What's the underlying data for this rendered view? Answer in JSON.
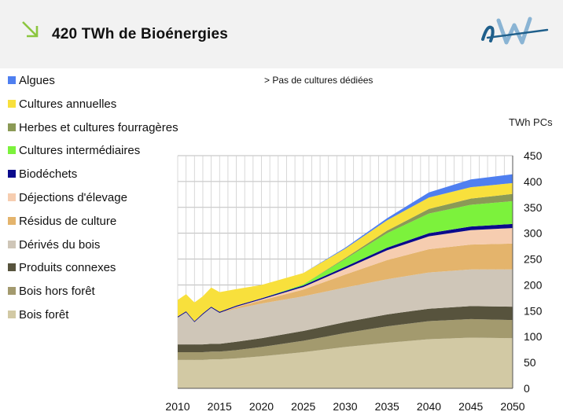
{
  "header": {
    "title": "420 TWh de Bioénergies",
    "arrow_color": "#8cc63f",
    "logo_colors": [
      "#1f5f8b",
      "#8ab4d4"
    ]
  },
  "note": "> Pas de cultures dédiées",
  "chart_data": {
    "type": "area",
    "stacked": true,
    "ylabel": "TWh PCs",
    "ylim": [
      0,
      450
    ],
    "yticks": [
      "0",
      "50",
      "100",
      "150",
      "200",
      "250",
      "300",
      "350",
      "400",
      "450"
    ],
    "xlim": [
      2010,
      2050
    ],
    "xticks": [
      "2010",
      "2015",
      "2020",
      "2025",
      "2030",
      "2035",
      "2040",
      "2045",
      "2050"
    ],
    "grid": true,
    "legend_position": "left",
    "x": [
      2010,
      2011,
      2012,
      2013,
      2014,
      2015,
      2017,
      2020,
      2025,
      2030,
      2035,
      2040,
      2045,
      2050
    ],
    "series": [
      {
        "name": "Bois forêt",
        "color": "#d2c9a4",
        "values": [
          55,
          55,
          55,
          55,
          56,
          56,
          58,
          62,
          70,
          80,
          88,
          95,
          98,
          97
        ]
      },
      {
        "name": "Bois hors forêt",
        "color": "#a39a6e",
        "values": [
          15,
          15,
          15,
          15,
          15,
          15,
          16,
          18,
          22,
          27,
          32,
          35,
          36,
          35
        ]
      },
      {
        "name": "Produits connexes",
        "color": "#57533d",
        "values": [
          15,
          15,
          15,
          15,
          15,
          15,
          16,
          17,
          19,
          21,
          23,
          24,
          25,
          26
        ]
      },
      {
        "name": "Dérivés du bois",
        "color": "#cfc6b8",
        "values": [
          52,
          62,
          43,
          58,
          70,
          60,
          64,
          67,
          67,
          67,
          68,
          70,
          71,
          72
        ]
      },
      {
        "name": "Produits connexes",
        "color": "#4a4a2a",
        "values": [
          0,
          0,
          0,
          0,
          0,
          0,
          0,
          0,
          0,
          0,
          0,
          0,
          0,
          0
        ]
      },
      {
        "name": "Résidus de culture",
        "color": "#e4b46c",
        "values": [
          0,
          0,
          0,
          0,
          0,
          0,
          3,
          6,
          13,
          25,
          37,
          45,
          48,
          50
        ]
      },
      {
        "name": "Déjections d'élevage",
        "color": "#f6cdb0",
        "values": [
          0,
          0,
          0,
          0,
          0,
          0,
          1,
          2,
          5,
          11,
          19,
          25,
          28,
          30
        ]
      },
      {
        "name": "Biodéchets",
        "color": "#0a0a8c",
        "values": [
          2,
          2,
          2,
          2,
          2,
          2,
          2,
          2,
          3,
          4,
          5,
          6,
          7,
          8
        ]
      },
      {
        "name": "Cultures intermédiaires",
        "color": "#7cf23c",
        "values": [
          0,
          0,
          0,
          0,
          0,
          0,
          0,
          0,
          2,
          15,
          28,
          38,
          42,
          44
        ]
      },
      {
        "name": "Herbes et cultures fourragères",
        "color": "#8b9a56",
        "values": [
          0,
          0,
          0,
          0,
          0,
          0,
          0,
          0,
          0,
          2,
          5,
          9,
          12,
          14
        ]
      },
      {
        "name": "Cultures annuelles",
        "color": "#f8e03c",
        "values": [
          32,
          33,
          36,
          33,
          37,
          38,
          32,
          26,
          22,
          18,
          20,
          22,
          22,
          21
        ]
      },
      {
        "name": "Algues",
        "color": "#4f7ff0",
        "values": [
          0,
          0,
          0,
          0,
          0,
          0,
          0,
          0,
          0,
          2,
          4,
          10,
          15,
          17
        ]
      }
    ],
    "legend_order": [
      "Algues",
      "Cultures annuelles",
      "Herbes et cultures fourragères",
      "Cultures intermédiaires",
      "Biodéchets",
      "Déjections d'élevage",
      "Résidus de culture",
      "Dérivés du bois",
      "Produits connexes",
      "Bois hors forêt",
      "Bois forêt"
    ]
  }
}
